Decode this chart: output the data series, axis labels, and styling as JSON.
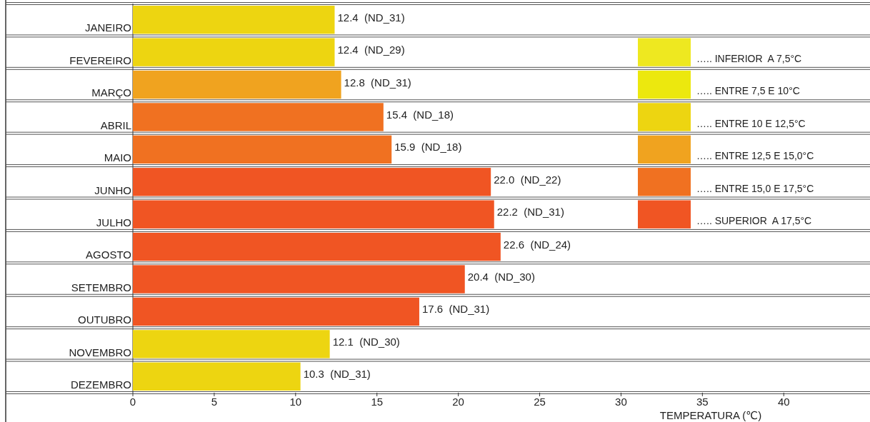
{
  "chart_data": {
    "type": "bar",
    "orientation": "horizontal",
    "xlabel": "TEMPERATURA (℃)",
    "categories": [
      "JANEIRO",
      "FEVEREIRO",
      "MARÇO",
      "ABRIL",
      "MAIO",
      "JUNHO",
      "JULHO",
      "AGOSTO",
      "SETEMBRO",
      "OUTUBRO",
      "NOVEMBRO",
      "DEZEMBRO"
    ],
    "xlim": [
      0,
      45.3
    ],
    "xticks": [
      0,
      5,
      10,
      15,
      20,
      25,
      30,
      35,
      40
    ],
    "values": [
      12.4,
      12.4,
      12.8,
      15.4,
      15.9,
      22.0,
      22.2,
      22.6,
      20.4,
      17.6,
      12.1,
      10.3
    ],
    "colors": [
      "#edd511",
      "#edd511",
      "#f0a31f",
      "#f07121",
      "#f07121",
      "#f05523",
      "#f05523",
      "#f05523",
      "#f05523",
      "#f05523",
      "#edd511",
      "#edd511"
    ],
    "value_labels": [
      "12.4  (ND_31)",
      "12.4  (ND_29)",
      "12.8  (ND_31)",
      "15.4  (ND_18)",
      "15.9  (ND_18)",
      "22.0  (ND_22)",
      "22.2  (ND_31)",
      "22.6  (ND_24)",
      "20.4  (ND_30)",
      "17.6  (ND_31)",
      "12.1  (ND_30)",
      "10.3  (ND_31)"
    ],
    "annotations": [
      "….. INFERIOR  A 7,5°C",
      "….. ENTRE 7,5 E 10°C",
      "….. ENTRE 10 E 12,5°C",
      "….. ENTRE 12,5 E 15,0°C",
      "….. ENTRE 15,0 E 17,5°C",
      "….. SUPERIOR  A 17,5°C"
    ]
  }
}
